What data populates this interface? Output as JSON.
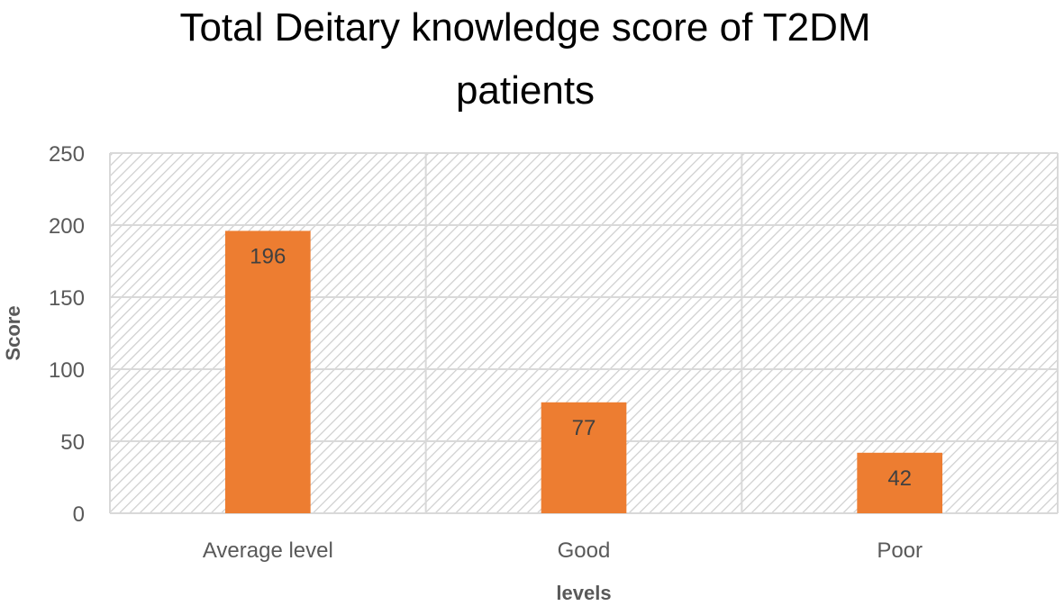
{
  "chart_data": {
    "type": "bar",
    "title": "Total Deitary knowledge score of T2DM patients",
    "title_lines": [
      "Total Deitary knowledge score of T2DM",
      "patients"
    ],
    "xlabel": "levels",
    "ylabel": "Score",
    "categories": [
      "Average level",
      "Good",
      "Poor"
    ],
    "values": [
      196,
      77,
      42
    ],
    "data_labels": [
      "196",
      "77",
      "42"
    ],
    "ylim": [
      0,
      250
    ],
    "yticks": [
      0,
      50,
      100,
      150,
      200,
      250
    ],
    "ytick_labels": [
      "0",
      "50",
      "100",
      "150",
      "200",
      "250"
    ],
    "grid": true,
    "legend": "none",
    "plot_background": "diagonal hatch",
    "colors": {
      "bar": "#ED7D31",
      "grid": "#D9D9D9",
      "hatch": "#CFCFCF",
      "text": "#595959"
    }
  }
}
